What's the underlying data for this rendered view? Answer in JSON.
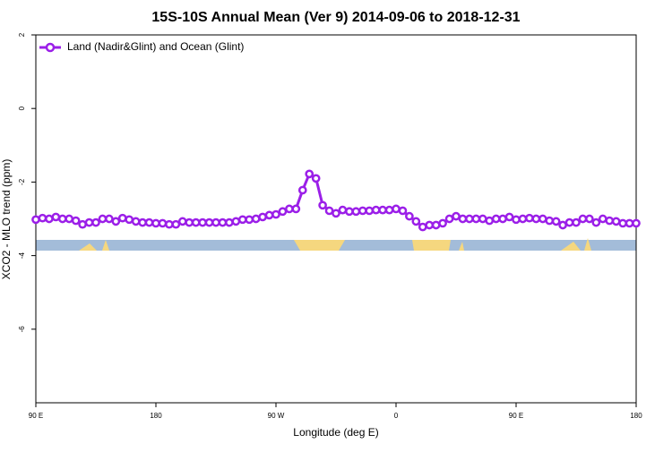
{
  "chart_data": {
    "type": "line",
    "title": "15S-10S Annual Mean (Ver 9)   2014-09-06 to 2018-12-31",
    "x_label": "Longitude (deg E)",
    "y_label": "XCO2 - MLO trend (ppm)",
    "xlim": [
      90,
      540
    ],
    "xticks": [
      {
        "value": 90,
        "label": "90 E"
      },
      {
        "value": 180,
        "label": "180"
      },
      {
        "value": 270,
        "label": "90 W"
      },
      {
        "value": 360,
        "label": "0"
      },
      {
        "value": 450,
        "label": "90 E"
      },
      {
        "value": 540,
        "label": "180"
      }
    ],
    "ylim": [
      -8,
      2
    ],
    "yticks": [
      2,
      0,
      -2,
      -4,
      -6
    ],
    "legend": "top-left",
    "x": [
      90,
      95,
      100,
      105,
      110,
      115,
      120,
      125,
      130,
      135,
      140,
      145,
      150,
      155,
      160,
      165,
      170,
      175,
      180,
      185,
      190,
      195,
      200,
      205,
      210,
      215,
      220,
      225,
      230,
      235,
      240,
      245,
      250,
      255,
      260,
      265,
      270,
      275,
      280,
      285,
      290,
      295,
      300,
      305,
      310,
      315,
      320,
      325,
      330,
      335,
      340,
      345,
      350,
      355,
      360,
      365,
      370,
      375,
      380,
      385,
      390,
      395,
      400,
      405,
      410,
      415,
      420,
      425,
      430,
      435,
      440,
      445,
      450,
      455,
      460,
      465,
      470,
      475,
      480,
      485,
      490,
      495,
      500,
      505,
      510,
      515,
      520,
      525,
      530,
      535,
      540
    ],
    "series": [
      {
        "name": "Land (Nadir&Glint) and Ocean (Glint)",
        "color": "#9b1fe8",
        "values": [
          -3.02,
          -2.98,
          -3.0,
          -2.95,
          -3.0,
          -3.0,
          -3.05,
          -3.15,
          -3.1,
          -3.1,
          -3.0,
          -3.0,
          -3.07,
          -2.98,
          -3.02,
          -3.07,
          -3.1,
          -3.1,
          -3.12,
          -3.12,
          -3.15,
          -3.15,
          -3.07,
          -3.1,
          -3.1,
          -3.1,
          -3.1,
          -3.1,
          -3.1,
          -3.1,
          -3.07,
          -3.02,
          -3.02,
          -3.0,
          -2.95,
          -2.9,
          -2.88,
          -2.8,
          -2.73,
          -2.73,
          -2.22,
          -1.78,
          -1.9,
          -2.63,
          -2.78,
          -2.85,
          -2.76,
          -2.8,
          -2.8,
          -2.78,
          -2.78,
          -2.76,
          -2.76,
          -2.76,
          -2.73,
          -2.78,
          -2.93,
          -3.07,
          -3.22,
          -3.17,
          -3.17,
          -3.12,
          -3.0,
          -2.93,
          -3.0,
          -3.0,
          -3.0,
          -3.0,
          -3.05,
          -3.0,
          -3.0,
          -2.95,
          -3.02,
          -3.0,
          -2.98,
          -3.0,
          -3.0,
          -3.05,
          -3.07,
          -3.17,
          -3.1,
          -3.1,
          -3.0,
          -3.0,
          -3.1,
          -3.0,
          -3.05,
          -3.07,
          -3.12,
          -3.12,
          -3.12
        ]
      }
    ]
  }
}
